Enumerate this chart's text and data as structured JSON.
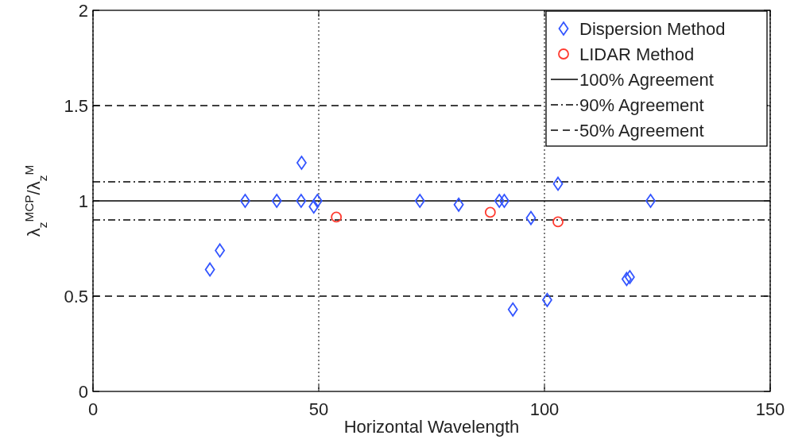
{
  "chart_data": {
    "type": "scatter",
    "xlabel": "Horizontal Wavelength",
    "ylabel": "λ$_{z}$$^{MCP}$/λ$_{z}$$^{M}$",
    "xlim": [
      0,
      150
    ],
    "xticks": [
      0,
      50,
      100,
      150
    ],
    "ylim": [
      0,
      2
    ],
    "yticks": [
      0,
      0.5,
      1,
      1.5,
      2
    ],
    "grid": "x",
    "legend": "top right",
    "series": [
      {
        "name": "Dispersion Method",
        "color": "#3355ff",
        "marker": "diamond",
        "x": [
          25.9,
          28.1,
          33.7,
          40.7,
          46.2,
          46.1,
          48.9,
          49.7,
          72.4,
          81.0,
          90.0,
          91.1,
          97.0,
          103.0,
          123.5,
          118.2,
          118.9,
          100.6,
          93.0
        ],
        "values": [
          0.64,
          0.74,
          1.0,
          1.0,
          1.2,
          1.0,
          0.97,
          1.0,
          1.0,
          0.98,
          1.0,
          1.0,
          0.91,
          1.09,
          1.0,
          0.59,
          0.6,
          0.48,
          0.43
        ]
      },
      {
        "name": "LIDAR Method",
        "color": "#ff3b30",
        "marker": "circle",
        "x": [
          53.9,
          88.0,
          103.0
        ],
        "values": [
          0.915,
          0.94,
          0.89
        ]
      }
    ],
    "ref_lines": [
      {
        "axis": "y",
        "value": 1,
        "label": "100% Agreement",
        "line_style": "solid"
      },
      {
        "axis": "y",
        "value": 0.9,
        "label": "90% Agreement",
        "line_style": "dashdot"
      },
      {
        "axis": "y",
        "value": 1.1,
        "label": null,
        "line_style": "dashdot"
      },
      {
        "axis": "y",
        "value": 0.5,
        "label": "50% Agreement",
        "line_style": "dashed"
      },
      {
        "axis": "y",
        "value": 1.5,
        "label": null,
        "line_style": "dashed"
      }
    ]
  }
}
